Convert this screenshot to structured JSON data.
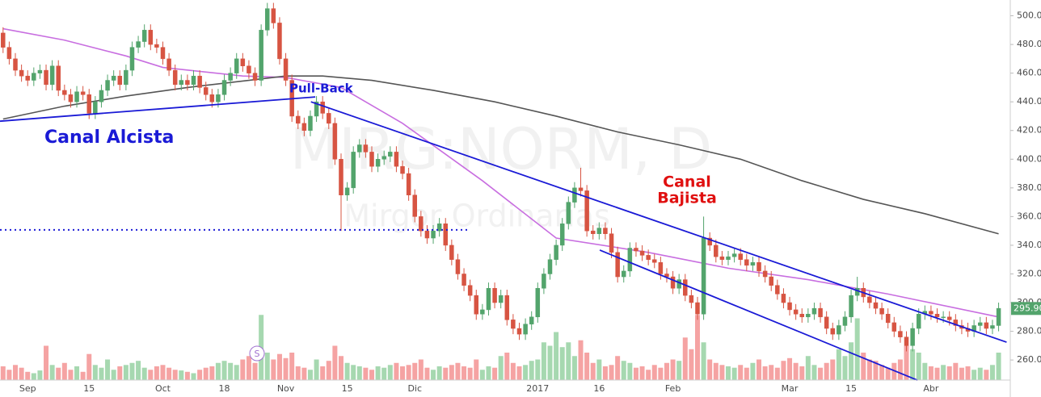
{
  "chart_data": {
    "type": "candlestick",
    "watermark": [
      "MIRG:NORM, D",
      "Mirgor Ordinarias"
    ],
    "annotations": [
      "Canal Alcista",
      "Pull-Back",
      "Canal",
      "Bajista"
    ],
    "split_marker": "S",
    "xlim": [
      -0.5,
      163.9
    ],
    "ylim": [
      246,
      511
    ],
    "xticks": [
      {
        "value": 4,
        "label": "Sep"
      },
      {
        "value": 14,
        "label": "15"
      },
      {
        "value": 26,
        "label": "Oct"
      },
      {
        "value": 36,
        "label": "18"
      },
      {
        "value": 46,
        "label": "Nov"
      },
      {
        "value": 56,
        "label": "15"
      },
      {
        "value": 67,
        "label": "Dic"
      },
      {
        "value": 87,
        "label": "2017"
      },
      {
        "value": 97,
        "label": "16"
      },
      {
        "value": 109,
        "label": "Feb"
      },
      {
        "value": 128,
        "label": "Mar"
      },
      {
        "value": 138,
        "label": "15"
      },
      {
        "value": 151,
        "label": "Abr"
      }
    ],
    "yticks": [
      {
        "value": 260,
        "label": "260.00"
      },
      {
        "value": 280,
        "label": "280.00"
      },
      {
        "value": 300,
        "label": "300.00"
      },
      {
        "value": 320,
        "label": "320.00"
      },
      {
        "value": 340,
        "label": "340.00"
      },
      {
        "value": 360,
        "label": "360.00"
      },
      {
        "value": 380,
        "label": "380.00"
      },
      {
        "value": 400,
        "label": "400.00"
      },
      {
        "value": 420,
        "label": "420.00"
      },
      {
        "value": 440,
        "label": "440.00"
      },
      {
        "value": 460,
        "label": "460.00"
      },
      {
        "value": 480,
        "label": "480.00"
      },
      {
        "value": 500,
        "label": "500.00"
      }
    ],
    "grid": true,
    "last_price": {
      "value": 295.9,
      "label": "295.90"
    },
    "up_color": "#53a46c",
    "down_color": "#d75442",
    "volume_up_color": "#a6d8b0",
    "volume_down_color": "#f5a3a3",
    "open": [
      488,
      478,
      470,
      462,
      458,
      455,
      460,
      462,
      452,
      465,
      448,
      445,
      440,
      447,
      445,
      432,
      440,
      448,
      455,
      458,
      452,
      462,
      478,
      482,
      490,
      480,
      478,
      470,
      462,
      452,
      455,
      452,
      458,
      450,
      445,
      440,
      445,
      455,
      460,
      470,
      465,
      460,
      455,
      490,
      505,
      495,
      470,
      455,
      430,
      425,
      420,
      430,
      440,
      432,
      425,
      400,
      375,
      380,
      405,
      410,
      405,
      395,
      400,
      402,
      405,
      395,
      390,
      375,
      360,
      350,
      345,
      350,
      355,
      340,
      330,
      320,
      312,
      305,
      292,
      295,
      310,
      300,
      305,
      288,
      282,
      278,
      285,
      290,
      310,
      320,
      330,
      340,
      355,
      370,
      380,
      378,
      350,
      348,
      352,
      348,
      335,
      318,
      322,
      338,
      336,
      333,
      330,
      328,
      320,
      318,
      310,
      316,
      305,
      300,
      292,
      345,
      340,
      332,
      330,
      332,
      334,
      330,
      326,
      328,
      322,
      318,
      312,
      306,
      300,
      295,
      292,
      290,
      292,
      296,
      290,
      282,
      278,
      284,
      290,
      305,
      310,
      304,
      300,
      296,
      292,
      286,
      280,
      276,
      270,
      282,
      292,
      294,
      292,
      290,
      290,
      288,
      284,
      282,
      280,
      284,
      286,
      282,
      284
    ],
    "high": [
      492,
      482,
      474,
      466,
      462,
      464,
      466,
      466,
      469,
      469,
      452,
      449,
      451,
      451,
      449,
      444,
      452,
      459,
      462,
      462,
      466,
      482,
      486,
      494,
      494,
      484,
      482,
      474,
      466,
      459,
      459,
      462,
      462,
      454,
      449,
      449,
      459,
      464,
      474,
      474,
      469,
      464,
      494,
      509,
      509,
      499,
      474,
      459,
      434,
      429,
      434,
      444,
      444,
      436,
      429,
      404,
      384,
      409,
      414,
      414,
      409,
      404,
      406,
      409,
      409,
      399,
      394,
      379,
      364,
      354,
      354,
      359,
      359,
      344,
      334,
      324,
      316,
      309,
      299,
      314,
      314,
      309,
      309,
      292,
      286,
      289,
      294,
      314,
      324,
      334,
      344,
      359,
      374,
      384,
      394,
      382,
      354,
      356,
      356,
      352,
      339,
      326,
      342,
      342,
      340,
      337,
      334,
      332,
      324,
      322,
      320,
      320,
      309,
      304,
      360,
      349,
      344,
      336,
      336,
      338,
      338,
      334,
      332,
      332,
      326,
      322,
      316,
      310,
      304,
      299,
      296,
      296,
      300,
      300,
      294,
      286,
      288,
      294,
      309,
      318,
      314,
      308,
      304,
      300,
      296,
      290,
      284,
      280,
      286,
      296,
      298,
      298,
      296,
      294,
      294,
      292,
      288,
      286,
      288,
      290,
      290,
      288,
      300
    ],
    "low": [
      474,
      466,
      458,
      454,
      451,
      451,
      456,
      448,
      448,
      444,
      441,
      436,
      436,
      441,
      428,
      428,
      436,
      444,
      451,
      448,
      448,
      458,
      474,
      478,
      476,
      474,
      466,
      458,
      448,
      448,
      448,
      448,
      446,
      441,
      436,
      436,
      441,
      451,
      456,
      461,
      456,
      451,
      451,
      486,
      491,
      466,
      451,
      426,
      421,
      416,
      416,
      426,
      428,
      421,
      396,
      350,
      371,
      376,
      401,
      401,
      391,
      391,
      396,
      398,
      391,
      386,
      371,
      356,
      346,
      341,
      341,
      346,
      336,
      326,
      316,
      308,
      301,
      288,
      288,
      291,
      296,
      296,
      284,
      278,
      274,
      274,
      281,
      286,
      306,
      316,
      326,
      336,
      351,
      366,
      374,
      346,
      344,
      344,
      344,
      331,
      314,
      314,
      318,
      332,
      329,
      326,
      324,
      316,
      314,
      306,
      306,
      301,
      296,
      288,
      288,
      336,
      328,
      326,
      326,
      328,
      326,
      322,
      322,
      318,
      314,
      308,
      302,
      296,
      291,
      288,
      286,
      286,
      288,
      286,
      278,
      274,
      274,
      280,
      286,
      301,
      300,
      296,
      292,
      288,
      282,
      276,
      272,
      266,
      266,
      278,
      288,
      288,
      286,
      286,
      284,
      280,
      278,
      276,
      276,
      280,
      278,
      278,
      280
    ],
    "close": [
      478,
      470,
      462,
      458,
      455,
      460,
      462,
      452,
      465,
      448,
      445,
      440,
      447,
      445,
      432,
      440,
      448,
      455,
      458,
      452,
      462,
      478,
      482,
      490,
      480,
      478,
      470,
      462,
      452,
      455,
      452,
      458,
      450,
      445,
      440,
      445,
      455,
      460,
      470,
      465,
      460,
      455,
      490,
      505,
      495,
      470,
      455,
      430,
      425,
      420,
      430,
      440,
      432,
      425,
      400,
      375,
      380,
      405,
      410,
      405,
      395,
      400,
      402,
      405,
      395,
      390,
      375,
      360,
      350,
      345,
      350,
      355,
      340,
      330,
      320,
      312,
      305,
      292,
      295,
      310,
      300,
      305,
      288,
      282,
      278,
      285,
      290,
      310,
      320,
      330,
      340,
      355,
      370,
      380,
      378,
      350,
      348,
      352,
      348,
      335,
      318,
      322,
      338,
      336,
      333,
      330,
      328,
      320,
      318,
      310,
      316,
      305,
      300,
      292,
      345,
      340,
      332,
      330,
      332,
      334,
      330,
      326,
      328,
      322,
      318,
      312,
      306,
      300,
      295,
      292,
      290,
      292,
      296,
      290,
      282,
      278,
      284,
      290,
      305,
      310,
      304,
      300,
      296,
      292,
      286,
      280,
      276,
      270,
      282,
      292,
      294,
      292,
      290,
      290,
      288,
      284,
      282,
      280,
      284,
      286,
      282,
      284,
      296
    ],
    "volume": [
      20,
      15,
      22,
      18,
      12,
      10,
      14,
      50,
      22,
      18,
      25,
      15,
      20,
      12,
      38,
      22,
      18,
      30,
      15,
      20,
      22,
      25,
      28,
      18,
      15,
      20,
      22,
      18,
      15,
      14,
      12,
      10,
      15,
      18,
      20,
      25,
      28,
      25,
      22,
      30,
      35,
      25,
      95,
      40,
      30,
      38,
      32,
      40,
      20,
      18,
      15,
      30,
      20,
      28,
      50,
      35,
      25,
      22,
      20,
      18,
      15,
      20,
      18,
      22,
      25,
      20,
      22,
      25,
      30,
      18,
      15,
      20,
      18,
      22,
      25,
      20,
      18,
      30,
      15,
      20,
      18,
      35,
      40,
      25,
      20,
      22,
      28,
      30,
      55,
      50,
      70,
      48,
      55,
      35,
      58,
      40,
      25,
      30,
      20,
      22,
      35,
      28,
      25,
      18,
      20,
      15,
      22,
      18,
      25,
      30,
      28,
      62,
      45,
      95,
      55,
      30,
      25,
      22,
      20,
      18,
      22,
      18,
      25,
      30,
      20,
      22,
      18,
      28,
      32,
      25,
      20,
      35,
      22,
      18,
      25,
      30,
      45,
      35,
      55,
      90,
      40,
      30,
      28,
      22,
      18,
      25,
      30,
      50,
      45,
      40,
      25,
      20,
      18,
      22,
      20,
      25,
      18,
      20,
      15,
      18,
      15,
      22,
      40
    ],
    "moving_averages": [
      {
        "color": "#c86ee0",
        "x": [
          0,
          10,
          20,
          26,
          39,
          46,
          55,
          65,
          78,
          90,
          105,
          118,
          131,
          144,
          162
        ],
        "values": [
          491,
          483,
          472,
          464,
          458,
          457,
          450,
          425,
          385,
          345,
          335,
          324,
          316,
          306,
          290
        ]
      },
      {
        "color": "#555555",
        "x": [
          0,
          10,
          20,
          30,
          40,
          46,
          52,
          60,
          70,
          80,
          90,
          100,
          110,
          120,
          130,
          140,
          150,
          162
        ],
        "values": [
          428,
          437,
          444,
          450,
          455,
          458,
          458,
          455,
          448,
          440,
          430,
          419,
          410,
          400,
          385,
          372,
          362,
          348
        ]
      }
    ],
    "trendlines": [
      {
        "color": "#1a1ad6",
        "dashed": false,
        "x": [
          -0.5,
          50.8
        ],
        "y": [
          426.5,
          443.4
        ]
      },
      {
        "color": "#1a1ad6",
        "dashed": false,
        "x": [
          50.1,
          163.3
        ],
        "y": [
          440,
          272.4
        ]
      },
      {
        "color": "#1a1ad6",
        "dashed": false,
        "x": [
          97.1,
          148.8
        ],
        "y": [
          336.6,
          245.9
        ]
      },
      {
        "color": "#1a1ad6",
        "dashed": true,
        "x": [
          -0.5,
          75.8
        ],
        "y": [
          350.7,
          350.7
        ]
      }
    ]
  }
}
